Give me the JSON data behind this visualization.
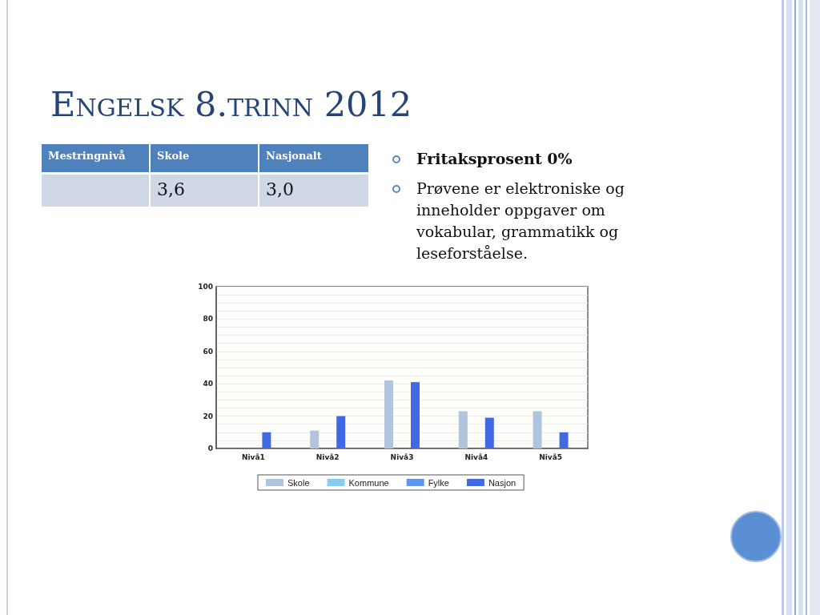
{
  "chart_data": {
    "type": "bar",
    "title": "Engelsk 8.trinn 2012",
    "categories": [
      "Nivå1",
      "Nivå2",
      "Nivå3",
      "Nivå4",
      "Nivå5"
    ],
    "series": [
      {
        "name": "Skole",
        "color": "#b0c4de",
        "values": [
          0,
          11,
          42,
          23,
          23
        ]
      },
      {
        "name": "Kommune",
        "color": "#87ceeb",
        "values": [
          null,
          null,
          null,
          null,
          null
        ]
      },
      {
        "name": "Fylke",
        "color": "#6495ed",
        "values": [
          null,
          null,
          null,
          null,
          null
        ]
      },
      {
        "name": "Nasjon",
        "color": "#4169e1",
        "values": [
          10,
          20,
          41,
          19,
          10
        ]
      }
    ],
    "ylim": [
      0,
      100
    ],
    "yticks": [
      0,
      {
        "value": 5,
        "label": null
      },
      {
        "value": 10,
        "label": null
      },
      {
        "value": 15,
        "label": null
      },
      20,
      {
        "value": 25,
        "label": null
      },
      {
        "value": 30,
        "label": null
      },
      {
        "value": 35,
        "label": null
      },
      40,
      {
        "value": 45,
        "label": null
      },
      {
        "value": 50,
        "label": null
      },
      {
        "value": 55,
        "label": null
      },
      60,
      {
        "value": 65,
        "label": null
      },
      {
        "value": 70,
        "label": null
      },
      {
        "value": 75,
        "label": null
      },
      80,
      {
        "value": 85,
        "label": null
      },
      {
        "value": 90,
        "label": null
      },
      {
        "value": 95,
        "label": null
      },
      100
    ],
    "grid": "y",
    "legend": "bottom",
    "annotations": [
      "Mestringnivå",
      "Skole",
      "Nasjonalt",
      "3,6",
      "3,0",
      "Fritaksprosent 0%",
      "Prøvene er elektroniske og inneholder oppgaver om vokabular, grammatikk og leseforståelse."
    ]
  }
}
